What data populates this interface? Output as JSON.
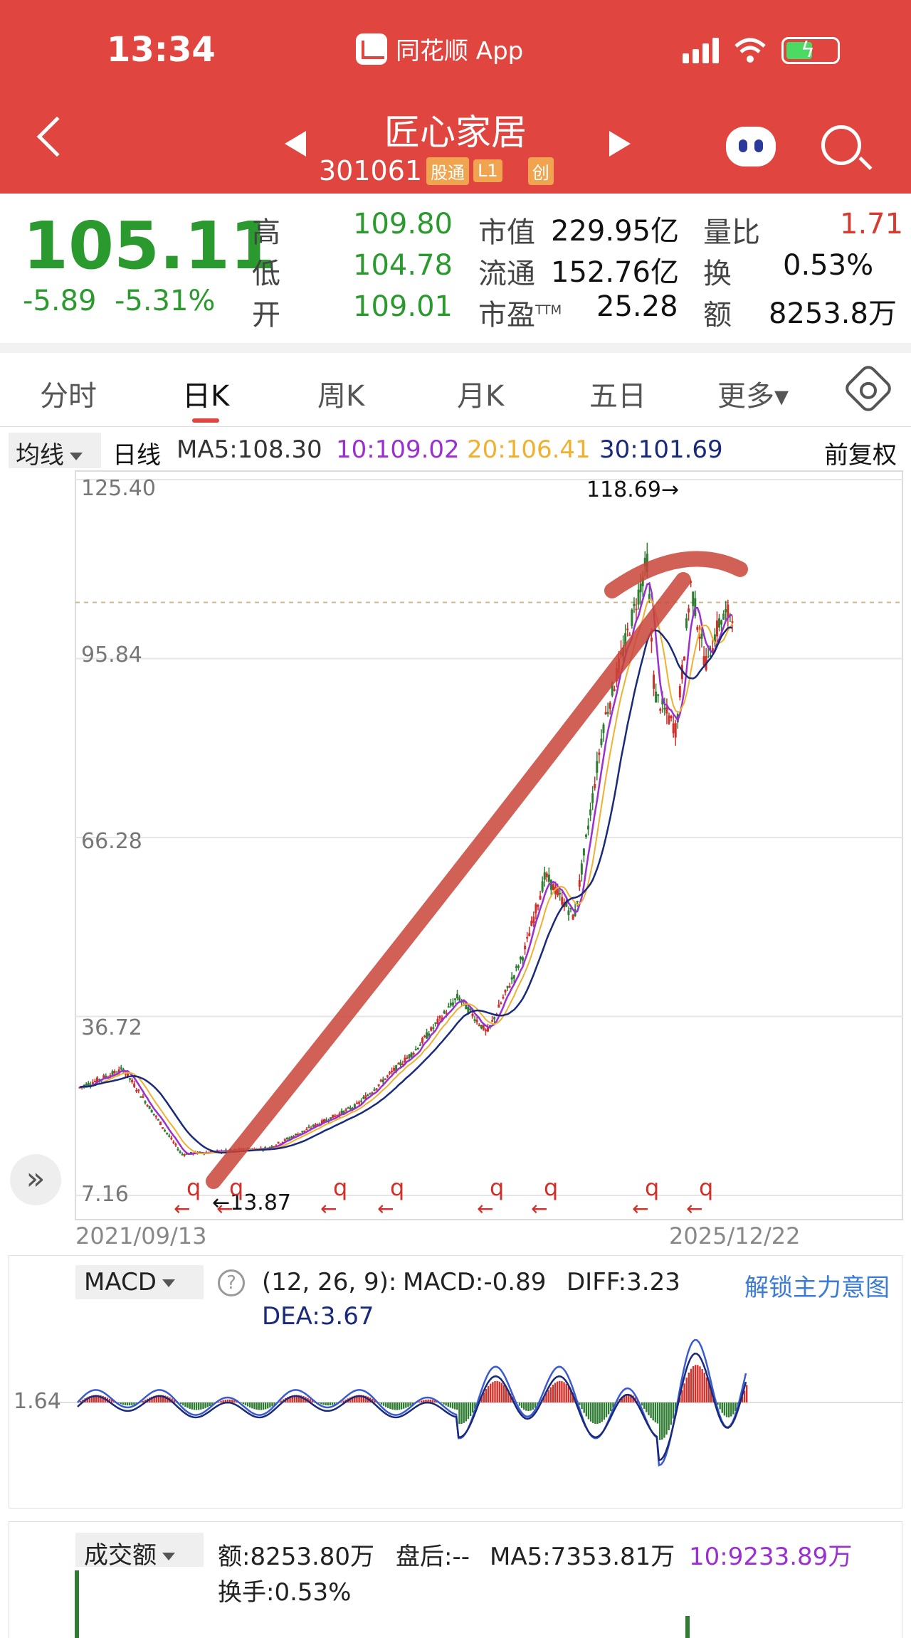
{
  "status": {
    "time": "13:34",
    "app": "同花顺 App"
  },
  "header": {
    "stock_name": "匠心家居",
    "stock_code": "301061",
    "tags": [
      "股通",
      "L1",
      "创"
    ]
  },
  "quote": {
    "price": "105.11",
    "change": "-5.89",
    "change_pct": "-5.31%",
    "high_label": "高",
    "high": "109.80",
    "low_label": "低",
    "low": "104.78",
    "open_label": "开",
    "open": "109.01",
    "mktcap_label": "市值",
    "mktcap": "229.95亿",
    "float_label": "流通",
    "float": "152.76亿",
    "pe_label": "市盈",
    "pe_sup": "TTM",
    "pe": "25.28",
    "vr_label": "量比",
    "vr": "1.71",
    "turnover_label": "换",
    "turnover": "0.53%",
    "amount_label": "额",
    "amount": "8253.8万"
  },
  "tabs": [
    "分时",
    "日K",
    "周K",
    "月K",
    "五日",
    "更多▾"
  ],
  "ma_bar": {
    "select": "均线",
    "period": "日线",
    "ma5": "MA5:108.30",
    "ma10": "10:109.02",
    "ma20": "20:106.41",
    "ma30": "30:101.69",
    "adjust": "前复权"
  },
  "colors": {
    "ma5": "#333333",
    "ma10": "#9a30d0",
    "ma20": "#f0b030",
    "ma30": "#1a2a7a",
    "up": "#d0302a",
    "down": "#2e7d32"
  },
  "kline": {
    "y_ticks": [
      "125.40",
      "95.84",
      "66.28",
      "36.72",
      "7.16"
    ],
    "y_values": [
      125.4,
      95.84,
      66.28,
      36.72,
      7.16
    ],
    "high_note": "118.69→",
    "low_note": "←13.87",
    "date_start": "2021/09/13",
    "date_end": "2025/12/22",
    "markers": [
      "q",
      "q",
      "q",
      "q",
      "q",
      "q",
      "q",
      "q"
    ],
    "marker_arrows": [
      "←",
      "←",
      "←",
      "←",
      "←",
      "←",
      "←",
      "←"
    ]
  },
  "macd": {
    "select": "MACD",
    "params": "(12, 26, 9):",
    "macd": "MACD:-0.89",
    "diff": "DIFF:3.23",
    "dea": "DEA:3.67",
    "unlock": "解锁主力意图",
    "y_tick": "1.64"
  },
  "volume": {
    "select": "成交额",
    "amount": "额:8253.80万",
    "after": "盘后:--",
    "ma5": "MA5:7353.81万",
    "ma10": "10:9233.89万",
    "turnover": "换手:0.53%"
  }
}
